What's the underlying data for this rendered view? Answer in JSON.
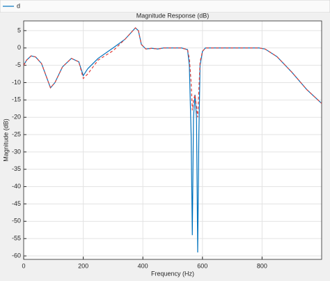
{
  "chart_data": {
    "type": "line",
    "title": "Magnitude Response (dB)",
    "x_label": "Frequency (Hz)",
    "y_label": "Magnitude (dB)",
    "x": [
      0,
      10,
      25,
      40,
      60,
      75,
      90,
      105,
      130,
      160,
      185,
      200,
      215,
      250,
      300,
      340,
      375,
      385,
      395,
      410,
      430,
      450,
      470,
      500,
      530,
      550,
      556,
      562,
      566,
      570,
      575,
      580,
      584,
      588,
      592,
      600,
      610,
      650,
      700,
      750,
      790,
      810,
      850,
      900,
      950,
      1000
    ],
    "series": [
      {
        "name": "d",
        "color": "#0072bd",
        "values": [
          -5,
          -3.5,
          -2.3,
          -2.6,
          -4.5,
          -8,
          -11.5,
          -10,
          -5.5,
          -3,
          -4,
          -8,
          -6,
          -3,
          0,
          2.5,
          5.8,
          5,
          1,
          -0.3,
          -0.1,
          -0.3,
          0,
          0,
          0,
          -0.5,
          -5,
          -25,
          -54,
          -20,
          -13.5,
          -20,
          -59,
          -25,
          -5,
          -1,
          0,
          0,
          0,
          0,
          0,
          -0.3,
          -2.5,
          -7,
          -12,
          -16
        ]
      },
      {
        "color": "#e0403a",
        "values": [
          -5,
          -3.5,
          -2.3,
          -2.6,
          -4.5,
          -8,
          -11.5,
          -10,
          -5.5,
          -3,
          -4,
          -8.8,
          -7.5,
          -3.5,
          -0.8,
          2.5,
          5.8,
          5,
          1,
          -0.3,
          -0.1,
          -0.3,
          0,
          0,
          0,
          -0.5,
          -3,
          -10,
          -18,
          -15,
          -13.5,
          -17,
          -20,
          -12,
          -4,
          -1,
          0,
          0,
          0,
          0,
          0,
          -0.3,
          -2.5,
          -7,
          -12,
          -16
        ]
      }
    ],
    "xlim": [
      0,
      1000
    ],
    "xticks": [
      0,
      200,
      400,
      600,
      800
    ],
    "ylim": [
      -61,
      7.8
    ],
    "yticks": [
      -60,
      -55,
      -50,
      -45,
      -40,
      -35,
      -30,
      -25,
      -20,
      -15,
      -10,
      -5,
      0,
      5
    ],
    "grid": true
  }
}
